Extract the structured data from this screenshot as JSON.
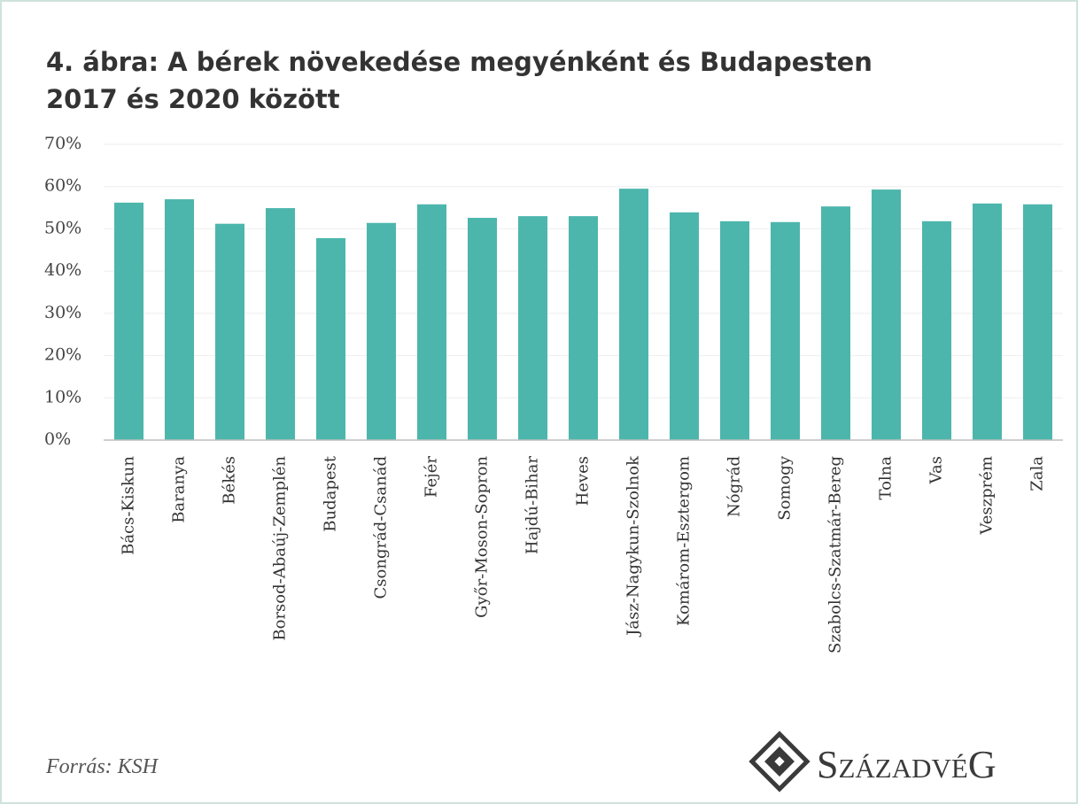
{
  "chart_data": {
    "type": "bar",
    "title": "4. ábra: A bérek növekedése megyénként és Budapesten",
    "subtitle": "2017 és 2020 között",
    "categories": [
      "Bács-Kiskun",
      "Baranya",
      "Békés",
      "Borsod-Abaúj-Zemplén",
      "Budapest",
      "Csongrád-Csanád",
      "Fejér",
      "Győr-Moson-Sopron",
      "Hajdú-Bihar",
      "Heves",
      "Jász-Nagykun-Szolnok",
      "Komárom-Esztergom",
      "Nógrád",
      "Somogy",
      "Szabolcs-Szatmár-Bereg",
      "Tolna",
      "Vas",
      "Veszprém",
      "Zala"
    ],
    "values": [
      56.2,
      57.0,
      51.2,
      54.9,
      47.8,
      51.4,
      55.8,
      52.6,
      53.0,
      53.0,
      59.5,
      53.9,
      51.8,
      51.6,
      55.3,
      59.3,
      51.8,
      56.0,
      55.8
    ],
    "color": "#4db6ac",
    "ylim": [
      0,
      70
    ],
    "yticks": [
      {
        "value": 0,
        "label": "0%"
      },
      {
        "value": 10,
        "label": "10%"
      },
      {
        "value": 20,
        "label": "20%"
      },
      {
        "value": 30,
        "label": "30%"
      },
      {
        "value": 40,
        "label": "40%"
      },
      {
        "value": 50,
        "label": "50%"
      },
      {
        "value": 60,
        "label": "60%"
      },
      {
        "value": 70,
        "label": "70%"
      }
    ],
    "grid": true,
    "source": "Forrás: KSH",
    "logo": "SzázadvéG"
  }
}
